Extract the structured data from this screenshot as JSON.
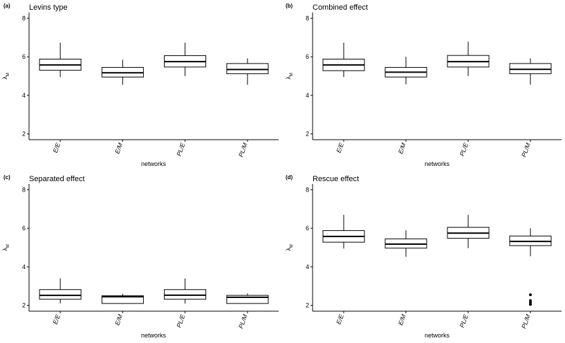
{
  "chart_data": [
    {
      "type": "boxplot",
      "tag": "(a)",
      "title": "Levins type",
      "xlabel": "networks",
      "ylabel": "λ",
      "ylabel_sub": "M",
      "ylim": [
        1.7,
        8.3
      ],
      "yticks": [
        2,
        4,
        6,
        8
      ],
      "categories": [
        "E/E",
        "E/M",
        "PL/E",
        "PL/M"
      ],
      "boxes": [
        {
          "whisker_low": 4.95,
          "q1": 5.3,
          "median": 5.58,
          "q3": 5.88,
          "whisker_high": 6.73,
          "outliers": []
        },
        {
          "whisker_low": 4.55,
          "q1": 4.95,
          "median": 5.17,
          "q3": 5.45,
          "whisker_high": 5.85,
          "outliers": []
        },
        {
          "whisker_low": 5.0,
          "q1": 5.47,
          "median": 5.75,
          "q3": 6.06,
          "whisker_high": 6.73,
          "outliers": []
        },
        {
          "whisker_low": 4.55,
          "q1": 5.12,
          "median": 5.34,
          "q3": 5.65,
          "whisker_high": 5.92,
          "outliers": []
        }
      ]
    },
    {
      "type": "boxplot",
      "tag": "(b)",
      "title": "Combined effect",
      "xlabel": "networks",
      "ylabel": "λ",
      "ylabel_sub": "M",
      "ylim": [
        1.7,
        8.3
      ],
      "yticks": [
        2,
        4,
        6,
        8
      ],
      "categories": [
        "E/E",
        "E/M",
        "PL/E",
        "PL/M"
      ],
      "boxes": [
        {
          "whisker_low": 4.95,
          "q1": 5.28,
          "median": 5.58,
          "q3": 5.88,
          "whisker_high": 6.73,
          "outliers": []
        },
        {
          "whisker_low": 4.57,
          "q1": 4.95,
          "median": 5.2,
          "q3": 5.45,
          "whisker_high": 6.0,
          "outliers": []
        },
        {
          "whisker_low": 5.0,
          "q1": 5.47,
          "median": 5.75,
          "q3": 6.07,
          "whisker_high": 6.78,
          "outliers": []
        },
        {
          "whisker_low": 4.55,
          "q1": 5.12,
          "median": 5.35,
          "q3": 5.65,
          "whisker_high": 5.92,
          "outliers": []
        }
      ]
    },
    {
      "type": "boxplot",
      "tag": "(c)",
      "title": "Separated effect",
      "xlabel": "networks",
      "ylabel": "λ",
      "ylabel_sub": "M",
      "ylim": [
        1.7,
        8.3
      ],
      "yticks": [
        2,
        4,
        6,
        8
      ],
      "categories": [
        "E/E",
        "E/M",
        "PL/E",
        "PL/M"
      ],
      "boxes": [
        {
          "whisker_low": 2.1,
          "q1": 2.32,
          "median": 2.52,
          "q3": 2.82,
          "whisker_high": 3.4,
          "outliers": []
        },
        {
          "whisker_low": 2.1,
          "q1": 2.1,
          "median": 2.45,
          "q3": 2.5,
          "whisker_high": 2.6,
          "outliers": []
        },
        {
          "whisker_low": 2.1,
          "q1": 2.32,
          "median": 2.53,
          "q3": 2.82,
          "whisker_high": 3.4,
          "outliers": []
        },
        {
          "whisker_low": 2.1,
          "q1": 2.1,
          "median": 2.42,
          "q3": 2.52,
          "whisker_high": 2.62,
          "outliers": []
        }
      ]
    },
    {
      "type": "boxplot",
      "tag": "(d)",
      "title": "Rescue effect",
      "xlabel": "networks",
      "ylabel": "λ",
      "ylabel_sub": "M",
      "ylim": [
        1.7,
        8.3
      ],
      "yticks": [
        2,
        4,
        6,
        8
      ],
      "categories": [
        "E/E",
        "E/M",
        "PL/E",
        "PL/M"
      ],
      "boxes": [
        {
          "whisker_low": 4.95,
          "q1": 5.28,
          "median": 5.58,
          "q3": 5.88,
          "whisker_high": 6.7,
          "outliers": []
        },
        {
          "whisker_low": 4.52,
          "q1": 4.97,
          "median": 5.18,
          "q3": 5.45,
          "whisker_high": 5.9,
          "outliers": []
        },
        {
          "whisker_low": 4.97,
          "q1": 5.48,
          "median": 5.75,
          "q3": 6.05,
          "whisker_high": 6.7,
          "outliers": []
        },
        {
          "whisker_low": 4.55,
          "q1": 5.1,
          "median": 5.32,
          "q3": 5.6,
          "whisker_high": 6.0,
          "outliers": [
            2.55,
            2.25,
            2.15,
            2.05
          ]
        }
      ]
    }
  ]
}
